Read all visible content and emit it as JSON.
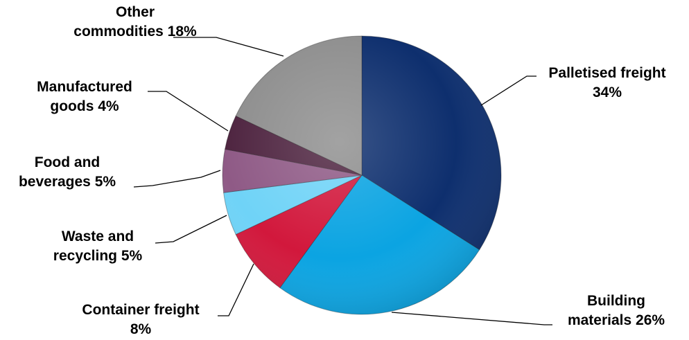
{
  "chart_data": {
    "type": "pie",
    "title": "",
    "start_angle_deg": 0,
    "direction": "clockwise",
    "slices": [
      {
        "name": "Palletised freight",
        "value": 34,
        "label_lines": [
          "Palletised freight",
          "34%"
        ],
        "color": "#0E2F6E"
      },
      {
        "name": "Building materials",
        "value": 26,
        "label_lines": [
          "Building",
          "materials 26%"
        ],
        "color": "#0BA4E2"
      },
      {
        "name": "Container freight",
        "value": 8,
        "label_lines": [
          "Container freight",
          "8%"
        ],
        "color": "#D2183C"
      },
      {
        "name": "Waste and recycling",
        "value": 5,
        "label_lines": [
          "Waste and",
          "recycling 5%"
        ],
        "color": "#6FD3F7"
      },
      {
        "name": "Food and beverages",
        "value": 5,
        "label_lines": [
          "Food and",
          "beverages 5%"
        ],
        "color": "#8F5A86"
      },
      {
        "name": "Manufactured goods",
        "value": 4,
        "label_lines": [
          "Manufactured",
          "goods 4%"
        ],
        "color": "#4E2440"
      },
      {
        "name": "Other commodities",
        "value": 18,
        "label_lines": [
          "Other",
          "commodities 18%"
        ],
        "color": "#8E8E8E"
      }
    ],
    "legend": "none",
    "labels_position": "outside-with-leader-lines"
  }
}
